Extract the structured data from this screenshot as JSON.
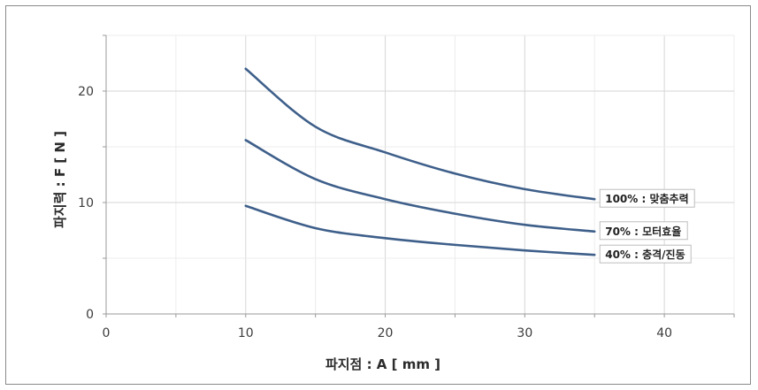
{
  "chart_data": {
    "type": "line",
    "xlabel": "파지점 : A [ mm ]",
    "ylabel": "파지력 : F [ N ]",
    "xlim": [
      0,
      45
    ],
    "ylim": [
      0,
      25
    ],
    "xticks": [
      0,
      10,
      20,
      30,
      40
    ],
    "yticks": [
      0,
      10,
      20
    ],
    "grid": true,
    "line_color": "#3e5f8a",
    "x": [
      10,
      15,
      20,
      25,
      30,
      35
    ],
    "series": [
      {
        "name": "100% : 맞춤추력",
        "values": [
          22.0,
          16.8,
          14.5,
          12.6,
          11.2,
          10.3
        ]
      },
      {
        "name": "70% : 모터효율",
        "values": [
          15.6,
          12.1,
          10.3,
          9.0,
          8.0,
          7.4
        ]
      },
      {
        "name": "40% : 충격/진동",
        "values": [
          9.7,
          7.7,
          6.8,
          6.2,
          5.7,
          5.3
        ]
      }
    ]
  }
}
